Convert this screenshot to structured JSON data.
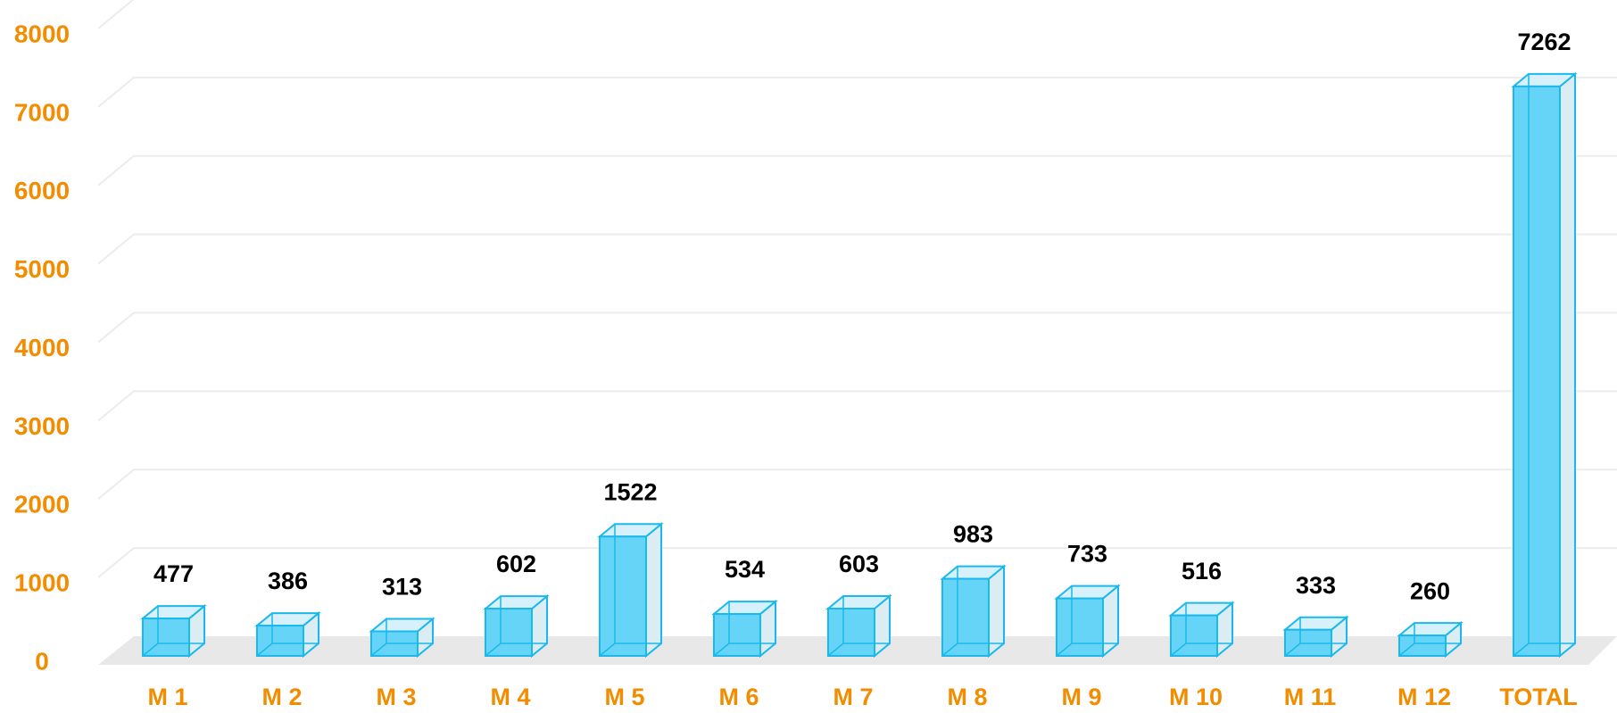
{
  "chart_data": {
    "type": "bar3d",
    "categories": [
      "M 1",
      "M 2",
      "M 3",
      "M 4",
      "M 5",
      "M 6",
      "M 7",
      "M 8",
      "M 9",
      "M 10",
      "M 11",
      "M 12",
      "TOTAL"
    ],
    "values": [
      477,
      386,
      313,
      602,
      1522,
      534,
      603,
      983,
      733,
      516,
      333,
      260,
      7262
    ],
    "color": "#66d4f7",
    "ylim": [
      0,
      8000
    ],
    "yticks": [
      0,
      1000,
      2000,
      3000,
      4000,
      5000,
      6000,
      7000,
      8000
    ],
    "grid": true
  }
}
